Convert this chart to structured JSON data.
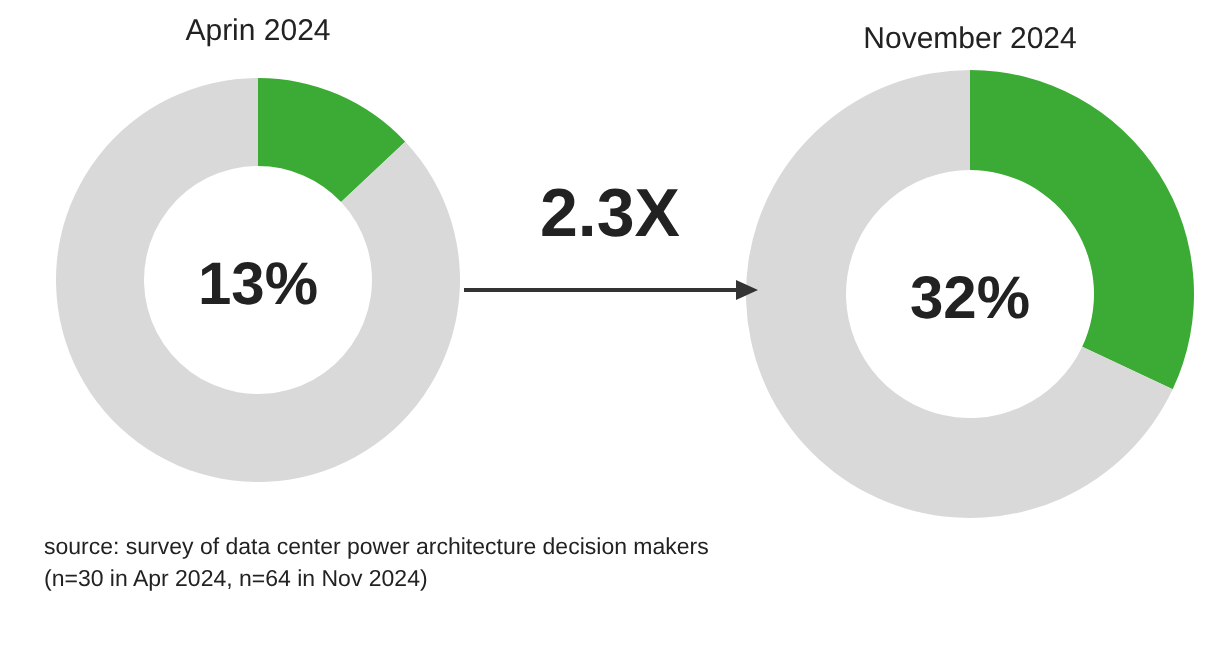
{
  "chart_data": [
    {
      "type": "donut",
      "title": "Aprin 2024",
      "categories": [
        null,
        null
      ],
      "values": [
        13,
        87
      ],
      "colors": [
        "#3bab35",
        "#d9d9d9"
      ],
      "annotations": [
        "13%"
      ]
    },
    {
      "type": "donut",
      "title": "November 2024",
      "categories": [
        null,
        null
      ],
      "values": [
        32,
        68
      ],
      "colors": [
        "#3bab35",
        "#d9d9d9"
      ],
      "annotations": [
        "32%"
      ]
    },
    {
      "type": "other",
      "title": "2.3X",
      "annotations": [
        "source: survey of data center power architecture decision makers",
        "(n=30 in Apr 2024, n=64 in Nov 2024)"
      ]
    }
  ]
}
